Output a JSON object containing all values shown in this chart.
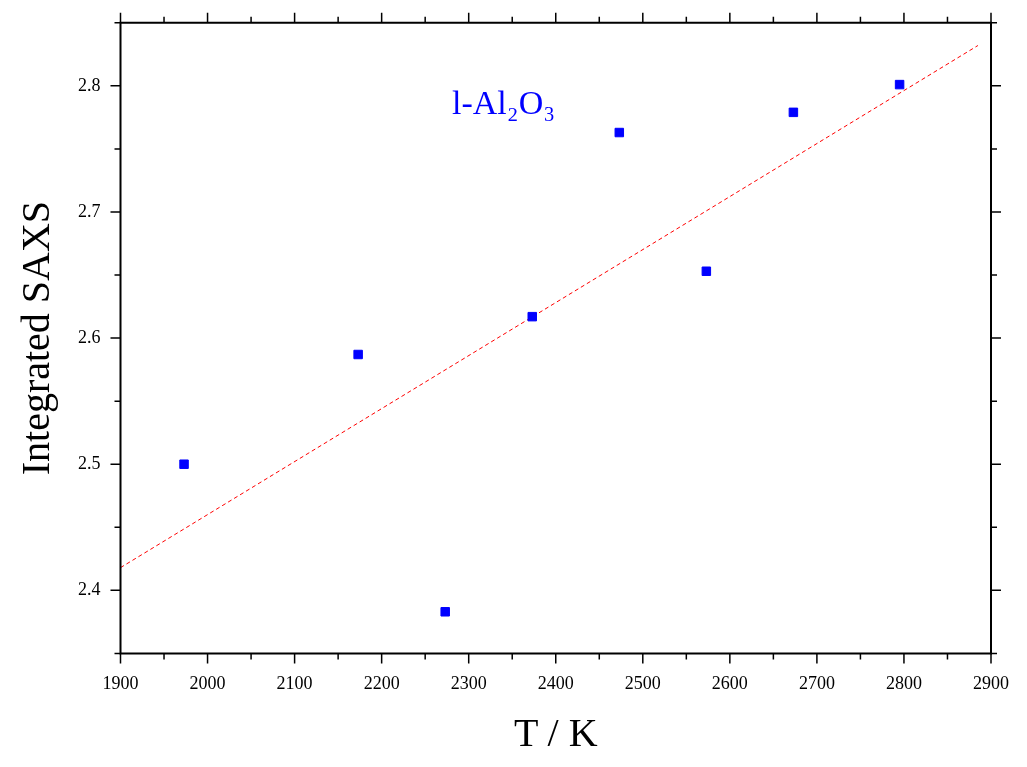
{
  "chart_data": {
    "type": "scatter",
    "xlabel": "T / K",
    "ylabel": "Integrated SAXS",
    "series": [
      {
        "name": "l-Al₂O₃",
        "color": "#0000ff",
        "marker": "square",
        "x": [
          1973,
          2173,
          2273,
          2373,
          2473,
          2573,
          2673,
          2795
        ],
        "values": [
          2.5,
          2.587,
          2.383,
          2.617,
          2.763,
          2.653,
          2.779,
          2.801
        ]
      },
      {
        "type": "line",
        "color": "#ff0000",
        "line_style": "dashed",
        "marker": "none",
        "x": [
          1900,
          2885
        ],
        "values": [
          2.418,
          2.832
        ]
      }
    ],
    "xlim": [
      1900,
      2900
    ],
    "xticks": [
      1900,
      {
        "value": 1950,
        "label": null
      },
      2000,
      {
        "value": 2050,
        "label": null
      },
      2100,
      {
        "value": 2150,
        "label": null
      },
      2200,
      {
        "value": 2250,
        "label": null
      },
      2300,
      {
        "value": 2350,
        "label": null
      },
      2400,
      {
        "value": 2450,
        "label": null
      },
      2500,
      {
        "value": 2550,
        "label": null
      },
      2600,
      {
        "value": 2650,
        "label": null
      },
      2700,
      {
        "value": 2750,
        "label": null
      },
      2800,
      {
        "value": 2850,
        "label": null
      },
      2900
    ],
    "ylim": [
      2.35,
      2.85
    ],
    "yticks": [
      {
        "value": 2.35,
        "label": null
      },
      {
        "value": 2.4,
        "label": "2.4"
      },
      {
        "value": 2.45,
        "label": null
      },
      {
        "value": 2.5,
        "label": "2.5"
      },
      {
        "value": 2.55,
        "label": null
      },
      {
        "value": 2.6,
        "label": "2.6"
      },
      {
        "value": 2.65,
        "label": null
      },
      {
        "value": 2.7,
        "label": "2.7"
      },
      {
        "value": 2.75,
        "label": null
      },
      {
        "value": 2.8,
        "label": "2.8"
      },
      {
        "value": 2.85,
        "label": null
      }
    ],
    "grid": false,
    "legend": false
  }
}
